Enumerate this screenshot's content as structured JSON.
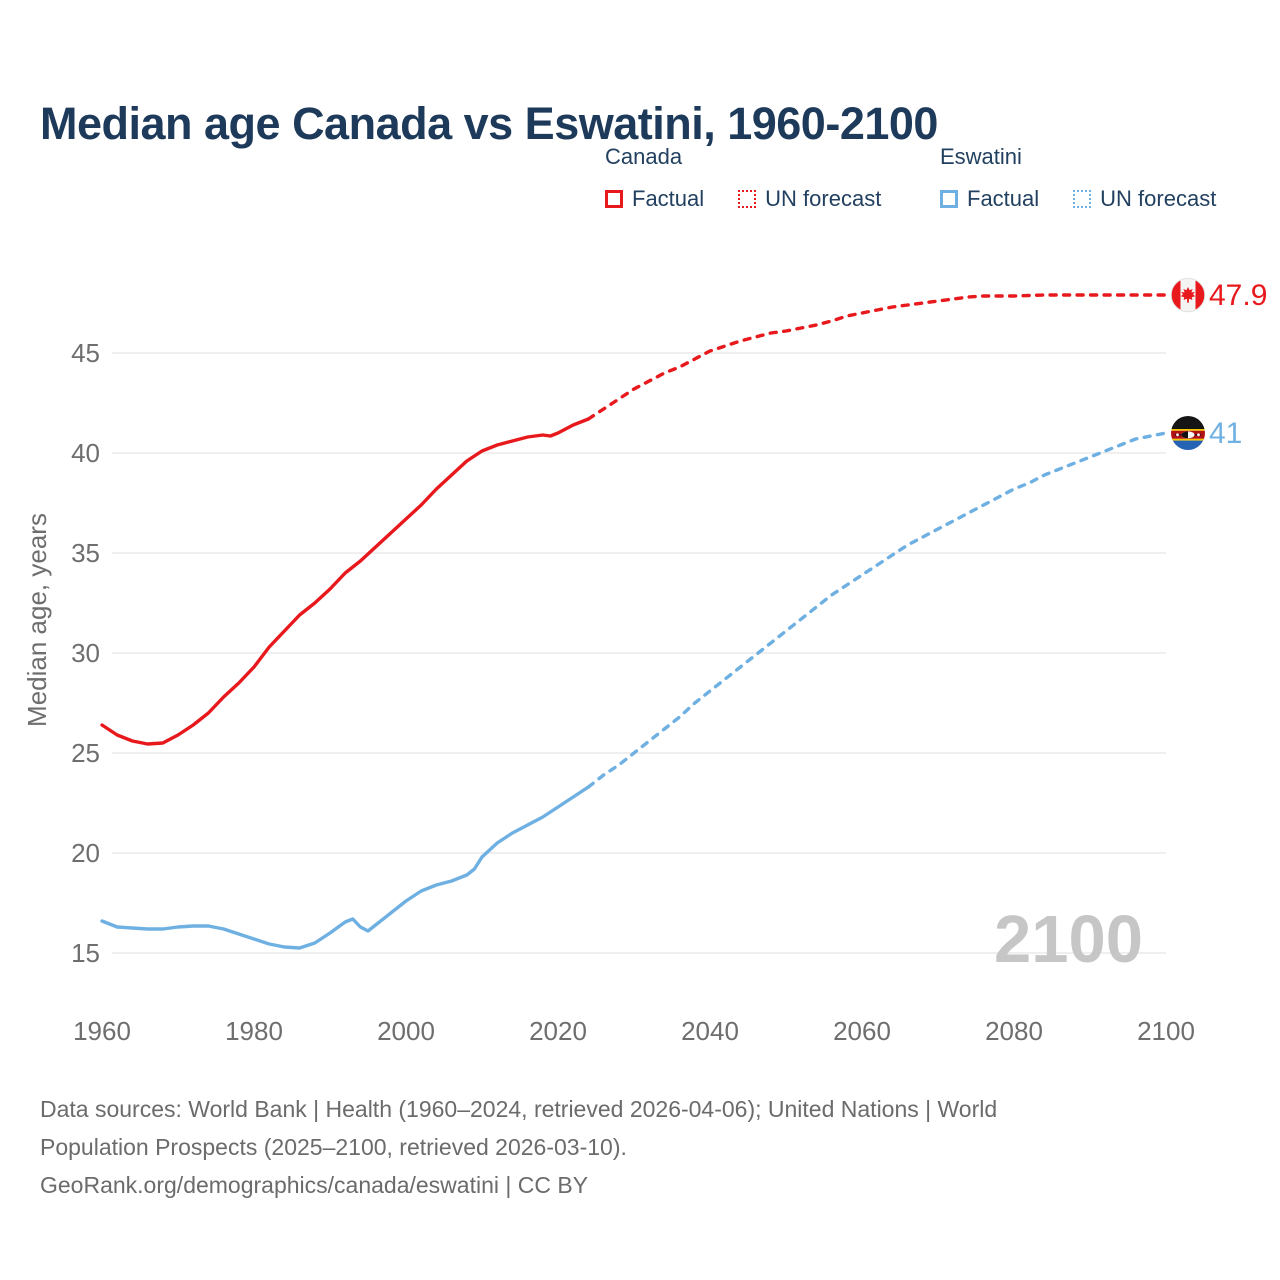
{
  "title": "Median age Canada vs Eswatini, 1960-2100",
  "colors": {
    "title": "#1e3a5a",
    "canada": "#e8191d",
    "eswatini": "#6fb0e2",
    "axis_text": "#6e6e6e",
    "footer_text": "#6b6b6b",
    "gridline": "#eaeaea",
    "watermark": "#c6c6c6",
    "eswatini_flag_black": "#151515",
    "eswatini_flag_crimson": "#b01116",
    "eswatini_flag_yellow": "#f5c400",
    "eswatini_flag_blue": "#2563b5"
  },
  "legend": {
    "groups": [
      {
        "label": "Canada",
        "items": [
          {
            "label": "Factual",
            "style": "solid",
            "color": "#e8191d"
          },
          {
            "label": "UN forecast",
            "style": "dotted",
            "color": "#e8191d"
          }
        ]
      },
      {
        "label": "Eswatini",
        "items": [
          {
            "label": "Factual",
            "style": "solid",
            "color": "#6fb0e2"
          },
          {
            "label": "UN forecast",
            "style": "dotted",
            "color": "#6fb0e2"
          }
        ]
      }
    ]
  },
  "watermark": "2100",
  "end_labels": [
    {
      "series": "Canada",
      "value": "47.9",
      "color": "#e8191d",
      "flag": "canada-flag-icon"
    },
    {
      "series": "Eswatini",
      "value": "41",
      "color": "#6fb0e2",
      "flag": "eswatini-flag-icon"
    }
  ],
  "footer": {
    "line1": "Data sources: World Bank | Health (1960–2024, retrieved 2026-04-06); United Nations | World",
    "line2": "Population Prospects (2025–2100, retrieved 2026-03-10).",
    "line3": "GeoRank.org/demographics/canada/eswatini | CC BY"
  },
  "chart_data": {
    "type": "line",
    "title": "Median age Canada vs Eswatini, 1960-2100",
    "xlabel": "",
    "ylabel": "Median age, years",
    "x_ticks": [
      1960,
      1980,
      2000,
      2020,
      2040,
      2060,
      2080,
      2100
    ],
    "y_ticks": [
      15,
      20,
      25,
      30,
      35,
      40,
      45
    ],
    "xlim": [
      1960,
      2100
    ],
    "ylim": [
      13.5,
      48.5
    ],
    "grid": "horizontal",
    "legend_position": "top",
    "series": [
      {
        "name": "Canada factual",
        "color": "#e8191d",
        "dash": "solid",
        "points": [
          [
            1960,
            26.4
          ],
          [
            1962,
            25.9
          ],
          [
            1964,
            25.6
          ],
          [
            1966,
            25.45
          ],
          [
            1968,
            25.5
          ],
          [
            1970,
            25.9
          ],
          [
            1972,
            26.4
          ],
          [
            1974,
            27.0
          ],
          [
            1976,
            27.8
          ],
          [
            1978,
            28.5
          ],
          [
            1980,
            29.3
          ],
          [
            1982,
            30.3
          ],
          [
            1984,
            31.1
          ],
          [
            1986,
            31.9
          ],
          [
            1988,
            32.5
          ],
          [
            1990,
            33.2
          ],
          [
            1992,
            34.0
          ],
          [
            1994,
            34.6
          ],
          [
            1996,
            35.3
          ],
          [
            1998,
            36.0
          ],
          [
            2000,
            36.7
          ],
          [
            2002,
            37.4
          ],
          [
            2004,
            38.2
          ],
          [
            2006,
            38.9
          ],
          [
            2008,
            39.6
          ],
          [
            2010,
            40.1
          ],
          [
            2012,
            40.4
          ],
          [
            2014,
            40.6
          ],
          [
            2016,
            40.8
          ],
          [
            2018,
            40.9
          ],
          [
            2019,
            40.85
          ],
          [
            2020,
            41.0
          ],
          [
            2022,
            41.4
          ],
          [
            2024,
            41.7
          ]
        ]
      },
      {
        "name": "Canada UN forecast",
        "color": "#e8191d",
        "dash": "dashed",
        "points": [
          [
            2024,
            41.7
          ],
          [
            2026,
            42.2
          ],
          [
            2028,
            42.7
          ],
          [
            2030,
            43.2
          ],
          [
            2032,
            43.6
          ],
          [
            2034,
            44.0
          ],
          [
            2036,
            44.3
          ],
          [
            2038,
            44.7
          ],
          [
            2040,
            45.1
          ],
          [
            2042,
            45.35
          ],
          [
            2044,
            45.6
          ],
          [
            2046,
            45.8
          ],
          [
            2048,
            46.0
          ],
          [
            2050,
            46.1
          ],
          [
            2052,
            46.25
          ],
          [
            2054,
            46.4
          ],
          [
            2056,
            46.6
          ],
          [
            2058,
            46.85
          ],
          [
            2060,
            47.0
          ],
          [
            2062,
            47.15
          ],
          [
            2064,
            47.3
          ],
          [
            2066,
            47.4
          ],
          [
            2068,
            47.5
          ],
          [
            2070,
            47.6
          ],
          [
            2072,
            47.7
          ],
          [
            2074,
            47.8
          ],
          [
            2076,
            47.85
          ],
          [
            2080,
            47.85
          ],
          [
            2084,
            47.9
          ],
          [
            2088,
            47.9
          ],
          [
            2092,
            47.9
          ],
          [
            2096,
            47.9
          ],
          [
            2100,
            47.9
          ]
        ]
      },
      {
        "name": "Eswatini factual",
        "color": "#6fb0e2",
        "dash": "solid",
        "points": [
          [
            1960,
            16.6
          ],
          [
            1962,
            16.3
          ],
          [
            1964,
            16.25
          ],
          [
            1966,
            16.2
          ],
          [
            1968,
            16.2
          ],
          [
            1970,
            16.3
          ],
          [
            1972,
            16.35
          ],
          [
            1974,
            16.35
          ],
          [
            1976,
            16.2
          ],
          [
            1978,
            15.95
          ],
          [
            1980,
            15.7
          ],
          [
            1982,
            15.45
          ],
          [
            1984,
            15.3
          ],
          [
            1986,
            15.25
          ],
          [
            1988,
            15.5
          ],
          [
            1990,
            16.0
          ],
          [
            1992,
            16.55
          ],
          [
            1993,
            16.7
          ],
          [
            1994,
            16.3
          ],
          [
            1995,
            16.1
          ],
          [
            1996,
            16.4
          ],
          [
            1998,
            17.0
          ],
          [
            2000,
            17.6
          ],
          [
            2002,
            18.1
          ],
          [
            2004,
            18.4
          ],
          [
            2006,
            18.6
          ],
          [
            2008,
            18.9
          ],
          [
            2009,
            19.2
          ],
          [
            2010,
            19.8
          ],
          [
            2012,
            20.5
          ],
          [
            2014,
            21.0
          ],
          [
            2016,
            21.4
          ],
          [
            2018,
            21.8
          ],
          [
            2020,
            22.3
          ],
          [
            2022,
            22.8
          ],
          [
            2024,
            23.3
          ]
        ]
      },
      {
        "name": "Eswatini UN forecast",
        "color": "#6fb0e2",
        "dash": "dashed",
        "points": [
          [
            2024,
            23.3
          ],
          [
            2026,
            23.9
          ],
          [
            2028,
            24.4
          ],
          [
            2030,
            25.0
          ],
          [
            2032,
            25.6
          ],
          [
            2034,
            26.2
          ],
          [
            2036,
            26.8
          ],
          [
            2038,
            27.5
          ],
          [
            2040,
            28.1
          ],
          [
            2042,
            28.7
          ],
          [
            2044,
            29.3
          ],
          [
            2046,
            29.9
          ],
          [
            2048,
            30.5
          ],
          [
            2050,
            31.1
          ],
          [
            2052,
            31.7
          ],
          [
            2054,
            32.3
          ],
          [
            2056,
            32.9
          ],
          [
            2058,
            33.4
          ],
          [
            2060,
            33.9
          ],
          [
            2062,
            34.4
          ],
          [
            2064,
            34.9
          ],
          [
            2066,
            35.4
          ],
          [
            2068,
            35.8
          ],
          [
            2070,
            36.2
          ],
          [
            2072,
            36.6
          ],
          [
            2074,
            37.0
          ],
          [
            2076,
            37.4
          ],
          [
            2078,
            37.8
          ],
          [
            2080,
            38.2
          ],
          [
            2082,
            38.5
          ],
          [
            2084,
            38.9
          ],
          [
            2086,
            39.2
          ],
          [
            2088,
            39.5
          ],
          [
            2090,
            39.8
          ],
          [
            2092,
            40.1
          ],
          [
            2094,
            40.4
          ],
          [
            2096,
            40.7
          ],
          [
            2098,
            40.85
          ],
          [
            2100,
            41.0
          ]
        ]
      }
    ]
  }
}
